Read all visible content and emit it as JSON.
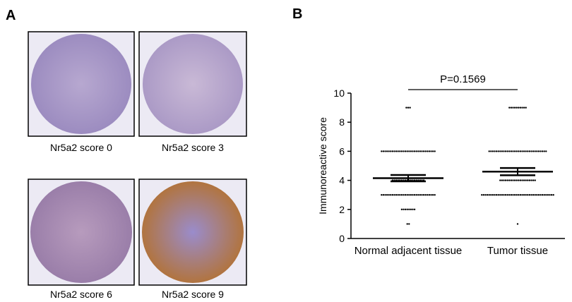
{
  "panel_a": {
    "label": "A",
    "images": [
      {
        "caption": "Nr5a2 score 0"
      },
      {
        "caption": "Nr5a2 score 3"
      },
      {
        "caption": "Nr5a2 score 6"
      },
      {
        "caption": "Nr5a2 score 9"
      }
    ]
  },
  "chart_data": {
    "type": "dotplot",
    "panel_label": "B",
    "y_label": "Immunoreactive score",
    "annotation": "P=0.1569",
    "categories": [
      "Normal adjacent tissue",
      "Tumor tissue"
    ],
    "groups": [
      {
        "distribution": [
          {
            "value": 9,
            "count": 3
          },
          {
            "value": 6,
            "count": 30
          },
          {
            "value": 4,
            "count": 18
          },
          {
            "value": 3,
            "count": 30
          },
          {
            "value": 2,
            "count": 8
          },
          {
            "value": 1,
            "count": 2
          }
        ],
        "mean": 4.15,
        "sem": 0.22
      },
      {
        "distribution": [
          {
            "value": 9,
            "count": 10
          },
          {
            "value": 6,
            "count": 32
          },
          {
            "value": 4,
            "count": 20
          },
          {
            "value": 3,
            "count": 40
          },
          {
            "value": 1,
            "count": 1
          }
        ],
        "mean": 4.6,
        "sem": 0.25
      }
    ],
    "color": "#000000",
    "ylim": [
      0,
      10
    ],
    "yticks": [
      0,
      2,
      4,
      6,
      8,
      10
    ]
  }
}
